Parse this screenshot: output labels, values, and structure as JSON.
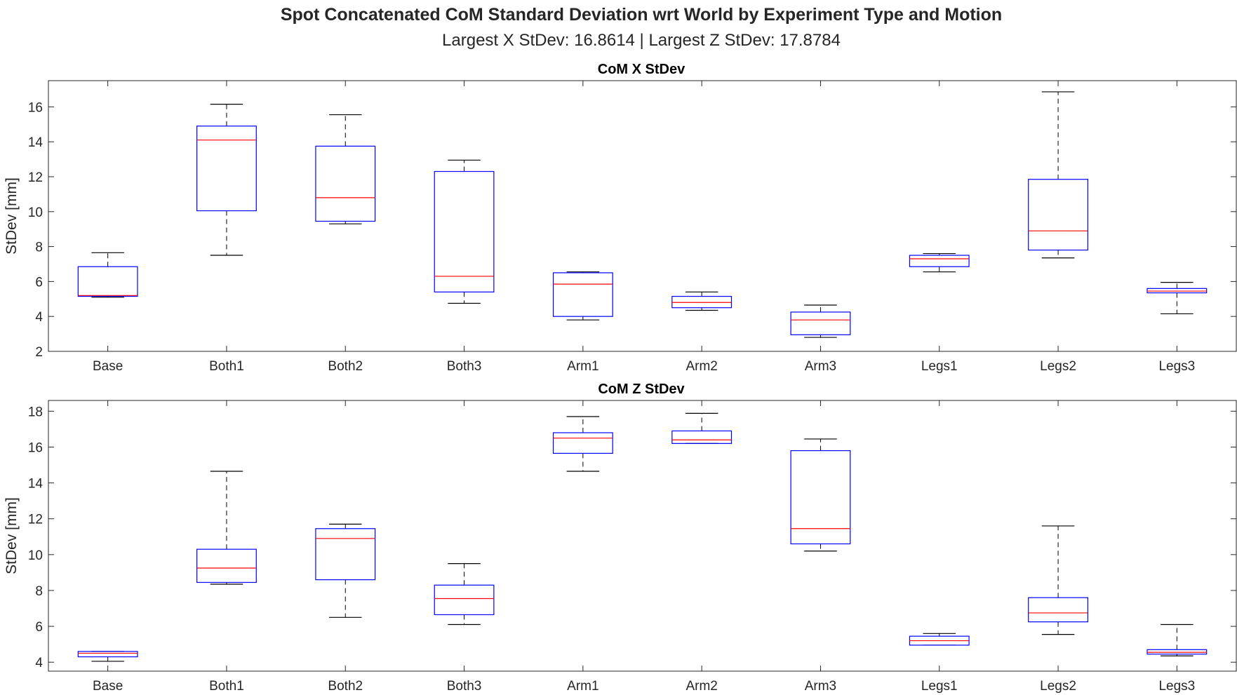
{
  "figure": {
    "title": "Spot Concatenated CoM Standard Deviation wrt World by Experiment Type and Motion",
    "subtitle": "Largest X StDev: 16.8614  |  Largest Z StDev: 17.8784"
  },
  "colors": {
    "box": "#0000ff",
    "median": "#ff0000",
    "whisker": "#000000",
    "axis": "#262626"
  },
  "chart_data": [
    {
      "type": "box",
      "title": "CoM X StDev",
      "xlabel": "",
      "ylabel": "StDev [mm]",
      "ylim": [
        2,
        17.5
      ],
      "yticks": [
        2,
        4,
        6,
        8,
        10,
        12,
        14,
        16
      ],
      "categories": [
        "Base",
        "Both1",
        "Both2",
        "Both3",
        "Arm1",
        "Arm2",
        "Arm3",
        "Legs1",
        "Legs2",
        "Legs3"
      ],
      "boxes": [
        {
          "min": 5.1,
          "q1": 5.15,
          "median": 5.2,
          "q3": 6.85,
          "max": 7.65
        },
        {
          "min": 7.5,
          "q1": 10.05,
          "median": 14.1,
          "q3": 14.9,
          "max": 16.15
        },
        {
          "min": 9.3,
          "q1": 9.45,
          "median": 10.8,
          "q3": 13.75,
          "max": 15.55
        },
        {
          "min": 4.75,
          "q1": 5.4,
          "median": 6.3,
          "q3": 12.3,
          "max": 12.95
        },
        {
          "min": 3.8,
          "q1": 4.0,
          "median": 5.85,
          "q3": 6.5,
          "max": 6.55
        },
        {
          "min": 4.35,
          "q1": 4.5,
          "median": 4.8,
          "q3": 5.15,
          "max": 5.4
        },
        {
          "min": 2.8,
          "q1": 2.95,
          "median": 3.8,
          "q3": 4.25,
          "max": 4.65
        },
        {
          "min": 6.55,
          "q1": 6.85,
          "median": 7.3,
          "q3": 7.5,
          "max": 7.6
        },
        {
          "min": 7.35,
          "q1": 7.8,
          "median": 8.9,
          "q3": 11.85,
          "max": 16.86
        },
        {
          "min": 4.15,
          "q1": 5.35,
          "median": 5.45,
          "q3": 5.6,
          "max": 5.95
        }
      ]
    },
    {
      "type": "box",
      "title": "CoM Z StDev",
      "xlabel": "",
      "ylabel": "StDev [mm]",
      "ylim": [
        3.5,
        18.6
      ],
      "yticks": [
        4,
        6,
        8,
        10,
        12,
        14,
        16,
        18
      ],
      "categories": [
        "Base",
        "Both1",
        "Both2",
        "Both3",
        "Arm1",
        "Arm2",
        "Arm3",
        "Legs1",
        "Legs2",
        "Legs3"
      ],
      "boxes": [
        {
          "min": 4.05,
          "q1": 4.3,
          "median": 4.5,
          "q3": 4.6,
          "max": 4.6
        },
        {
          "min": 8.35,
          "q1": 8.45,
          "median": 9.25,
          "q3": 10.3,
          "max": 14.65
        },
        {
          "min": 6.5,
          "q1": 8.6,
          "median": 10.9,
          "q3": 11.45,
          "max": 11.7
        },
        {
          "min": 6.1,
          "q1": 6.65,
          "median": 7.55,
          "q3": 8.3,
          "max": 9.5
        },
        {
          "min": 14.65,
          "q1": 15.65,
          "median": 16.5,
          "q3": 16.8,
          "max": 17.7
        },
        {
          "min": 16.2,
          "q1": 16.2,
          "median": 16.4,
          "q3": 16.9,
          "max": 17.88
        },
        {
          "min": 10.2,
          "q1": 10.6,
          "median": 11.45,
          "q3": 15.8,
          "max": 16.45
        },
        {
          "min": 4.95,
          "q1": 4.95,
          "median": 5.2,
          "q3": 5.45,
          "max": 5.6
        },
        {
          "min": 5.55,
          "q1": 6.25,
          "median": 6.75,
          "q3": 7.6,
          "max": 11.6
        },
        {
          "min": 4.35,
          "q1": 4.45,
          "median": 4.55,
          "q3": 4.7,
          "max": 6.1
        }
      ]
    }
  ]
}
